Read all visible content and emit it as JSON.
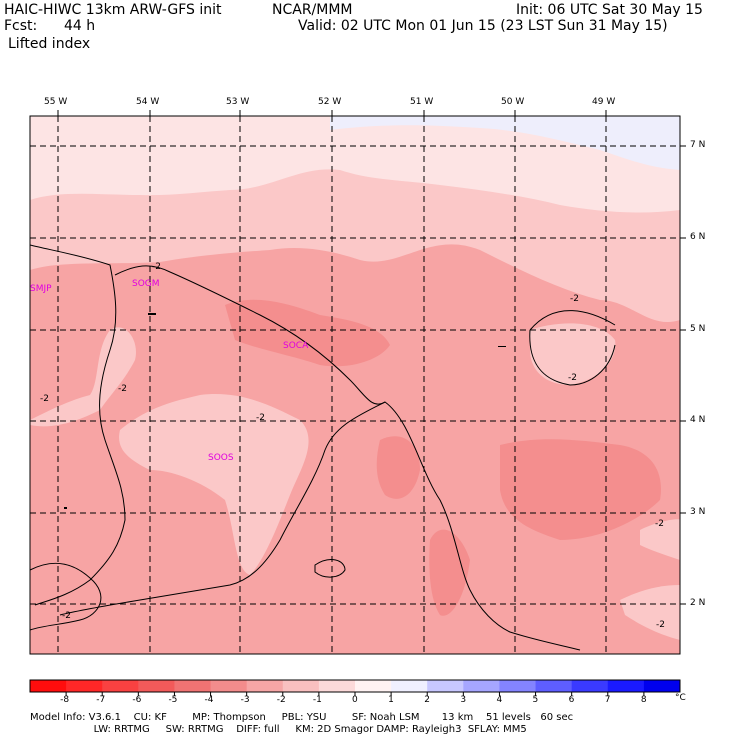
{
  "header": {
    "model_title": "HAIC-HIWC 13km ARW-GFS init",
    "org": "NCAR/MMM",
    "init": "Init: 06 UTC Sat 30 May 15",
    "fcst_label": "Fcst:",
    "fcst_hours": "44 h",
    "valid": "Valid: 02 UTC Mon 01 Jun 15 (23 LST Sun 31 May 15)",
    "field": "Lifted index"
  },
  "map": {
    "lon_labels": [
      "55 W",
      "54 W",
      "53 W",
      "52 W",
      "51 W",
      "50 W",
      "49 W"
    ],
    "lat_labels": [
      "7 N",
      "6 N",
      "5 N",
      "4 N",
      "3 N",
      "2 N"
    ],
    "stations": [
      "SMJP",
      "SOGM",
      "SOCA",
      "SOOS"
    ],
    "contour_label": "-2"
  },
  "colorbar": {
    "ticks": [
      "-8",
      "-7",
      "-6",
      "-5",
      "-4",
      "-3",
      "-2",
      "-1",
      "0",
      "1",
      "2",
      "3",
      "4",
      "5",
      "6",
      "7",
      "8"
    ],
    "unit": "°C",
    "colors": [
      "#ff0d0d",
      "#ff2727",
      "#f94141",
      "#f25a5a",
      "#f07373",
      "#f38c8c",
      "#f6a6a6",
      "#f9c0c0",
      "#fcdada",
      "#fff3f3",
      "#f0f0ff",
      "#c8c8ff",
      "#a6a6ff",
      "#8484ff",
      "#5e5eff",
      "#3a3aff",
      "#1a1aff",
      "#0000ee"
    ]
  },
  "footer": {
    "line1": "Model Info: V3.6.1    CU: KF        MP: Thompson     PBL: YSU        SF: Noah LSM       13 km    51 levels   60 sec",
    "line2": "                    LW: RRTMG     SW: RRTMG    DIFF: full     KM: 2D Smagor DAMP: Rayleigh3  SFLAY: MM5"
  }
}
